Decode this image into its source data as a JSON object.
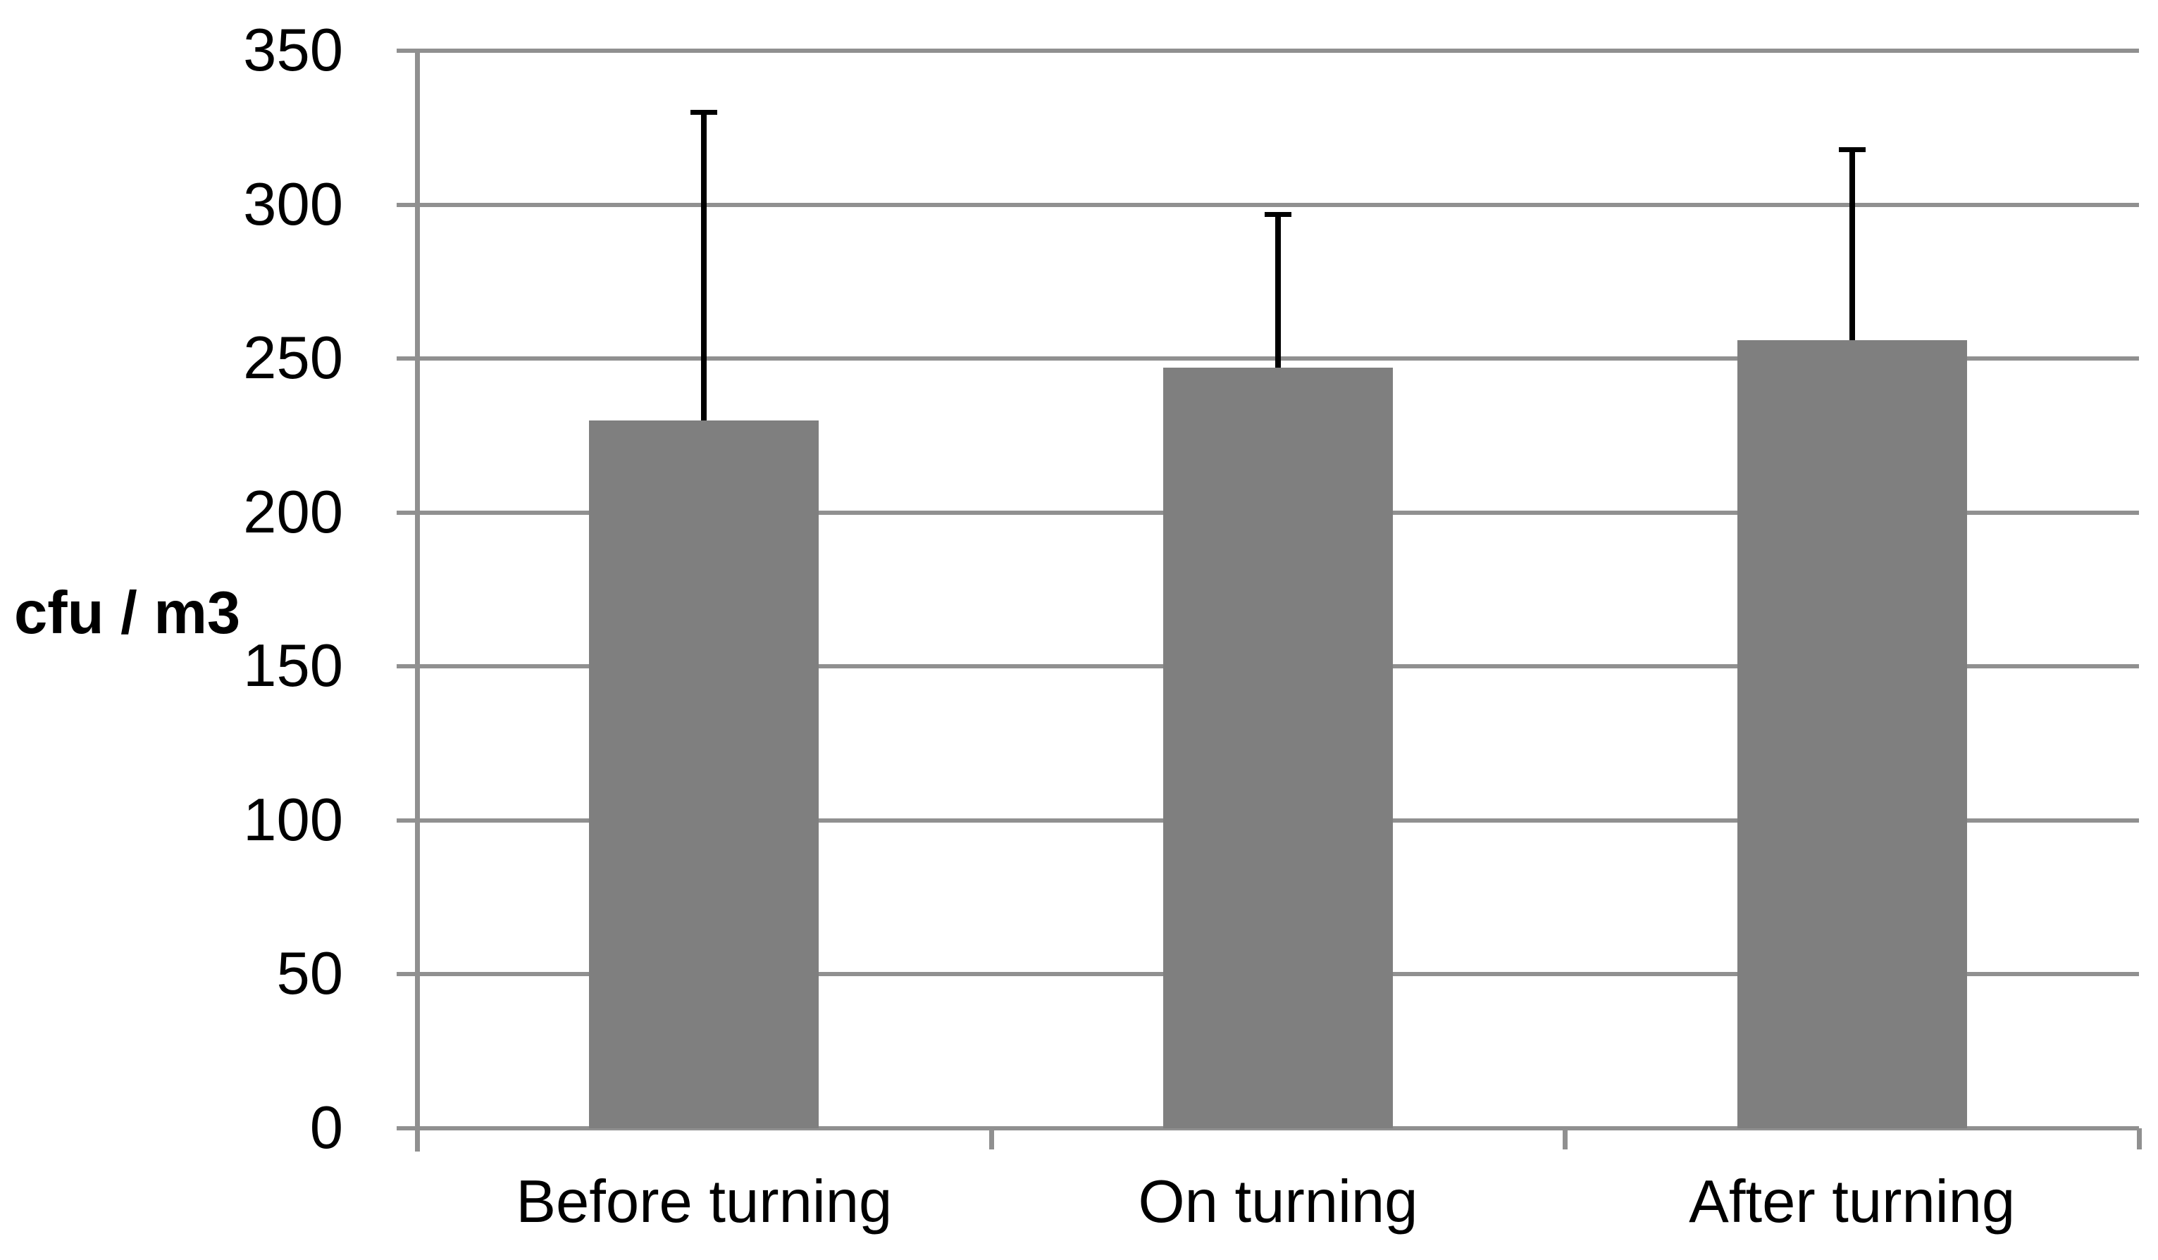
{
  "chart_data": {
    "type": "bar",
    "title": "",
    "categories": [
      "Before turning",
      "On turning",
      "After turning"
    ],
    "values": [
      230,
      247,
      256
    ],
    "error_plus": [
      100,
      50,
      62
    ],
    "whisker_tops": [
      330,
      297,
      318
    ],
    "series": [
      {
        "name": "cfu / m3",
        "values": [
          230,
          247,
          256
        ],
        "error_plus": [
          100,
          50,
          62
        ]
      }
    ],
    "xlabel": "",
    "ylabel": "cfu / m3",
    "ylim": [
      0,
      350
    ],
    "ytick_interval": 50,
    "yticks": [
      350,
      300,
      250,
      200,
      150,
      100,
      50,
      0
    ],
    "grid": "horizontal-major",
    "legend": "none",
    "bar_color": "#7f7f7f",
    "gridline_color": "#909090",
    "axis_color": "#909090",
    "error_bar_color": "#000000",
    "text_color": "#000000",
    "background_color": "#ffffff"
  }
}
